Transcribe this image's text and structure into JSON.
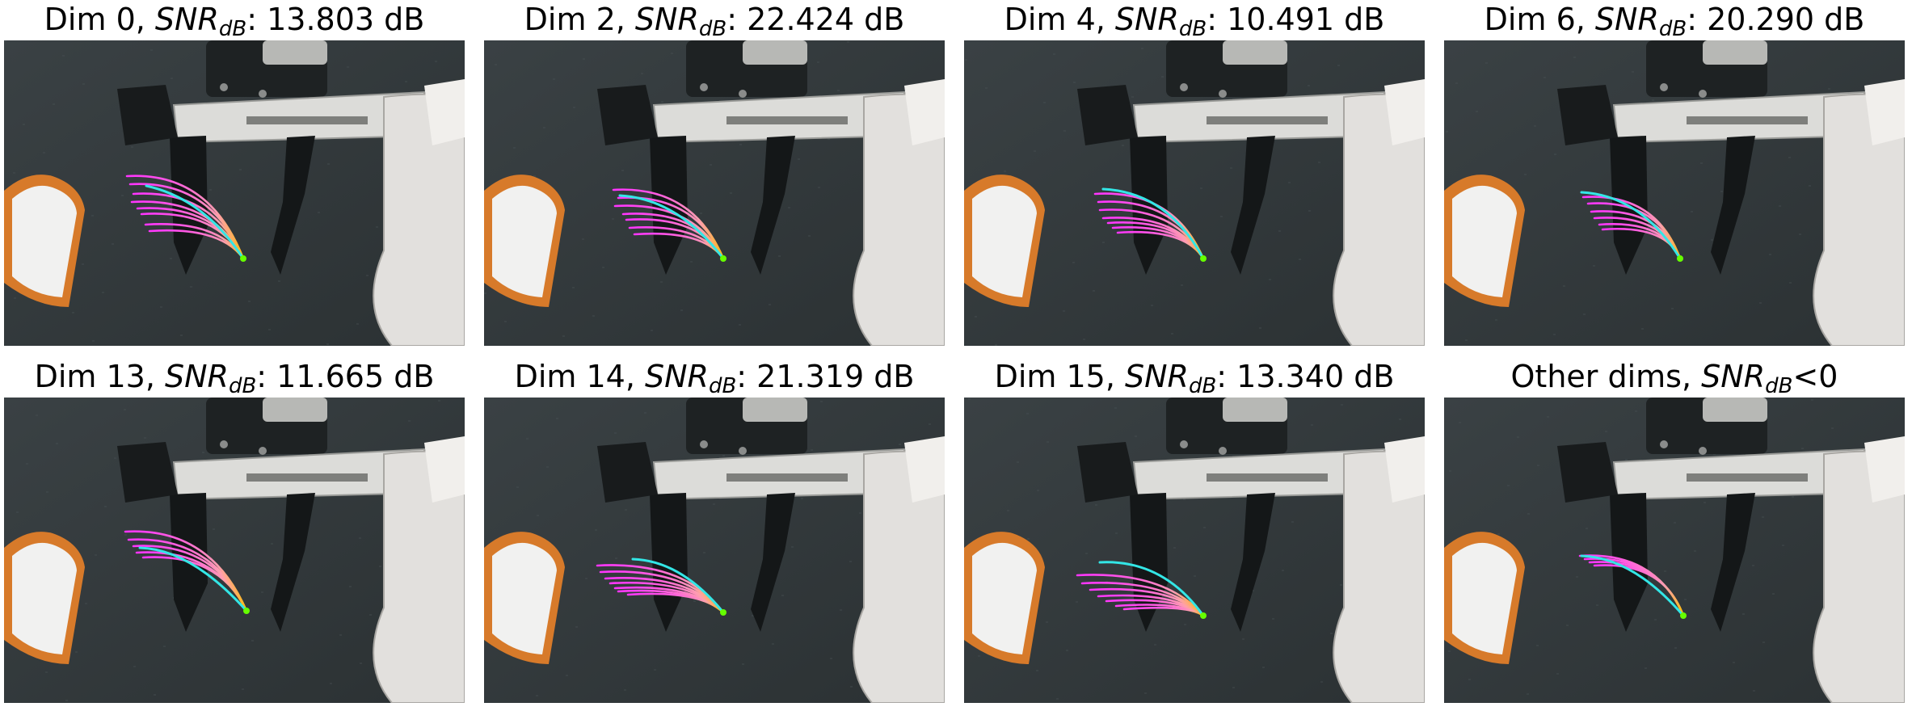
{
  "panels": [
    {
      "title_prefix": "Dim 0, ",
      "snr_label": "SNR",
      "snr_sub": "dB",
      "title_suffix": ": 13.803 dB",
      "variant": "dim0"
    },
    {
      "title_prefix": "Dim 2, ",
      "snr_label": "SNR",
      "snr_sub": "dB",
      "title_suffix": ": 22.424 dB",
      "variant": "dim2"
    },
    {
      "title_prefix": "Dim 4, ",
      "snr_label": "SNR",
      "snr_sub": "dB",
      "title_suffix": ": 10.491 dB",
      "variant": "dim4"
    },
    {
      "title_prefix": "Dim 6, ",
      "snr_label": "SNR",
      "snr_sub": "dB",
      "title_suffix": ": 20.290 dB",
      "variant": "dim6"
    },
    {
      "title_prefix": "Dim 13, ",
      "snr_label": "SNR",
      "snr_sub": "dB",
      "title_suffix": ": 11.665 dB",
      "variant": "dim13"
    },
    {
      "title_prefix": "Dim 14, ",
      "snr_label": "SNR",
      "snr_sub": "dB",
      "title_suffix": ": 21.319 dB",
      "variant": "dim14"
    },
    {
      "title_prefix": "Dim 15, ",
      "snr_label": "SNR",
      "snr_sub": "dB",
      "title_suffix": ": 13.340 dB",
      "variant": "dim15"
    },
    {
      "title_prefix": "Other dims, ",
      "snr_label": "SNR",
      "snr_sub": "dB",
      "title_suffix": "<0",
      "variant": "other"
    }
  ],
  "colors": {
    "trajectory_start": "#ff33ff",
    "trajectory_mid": "#ff9eb0",
    "trajectory_end": "#ffc000",
    "endpoint": "#66ff00",
    "cyan_line": "#33e6e6"
  }
}
